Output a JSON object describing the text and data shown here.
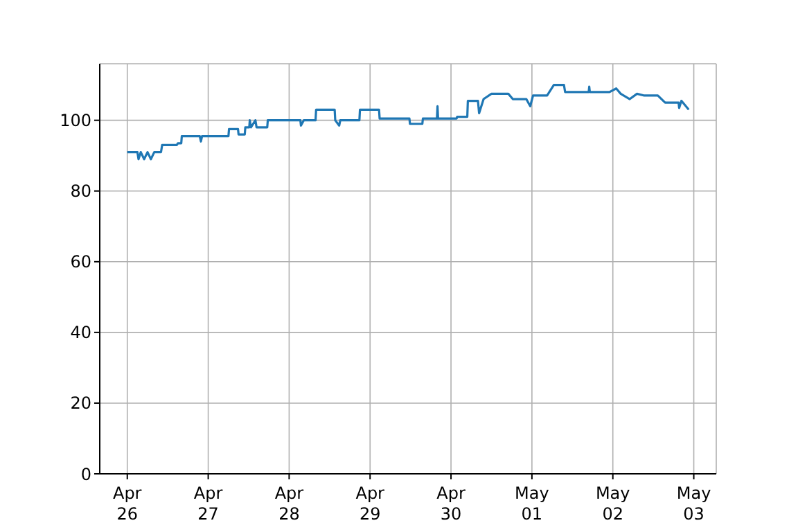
{
  "chart_data": {
    "type": "line",
    "x": [
      "--04-26T00:00",
      "--04-26T03:00",
      "--04-26T03:20",
      "--04-26T04:00",
      "--04-26T05:00",
      "--04-26T06:00",
      "--04-26T07:00",
      "--04-26T08:00",
      "--04-26T10:00",
      "--04-26T10:20",
      "--04-26T14:40",
      "--04-26T15:00",
      "--04-26T16:00",
      "--04-26T16:10",
      "--04-26T21:30",
      "--04-26T21:50",
      "--04-26T22:10",
      "--04-27T06:00",
      "--04-27T06:10",
      "--04-27T08:50",
      "--04-27T09:00",
      "--04-27T10:50",
      "--04-27T11:00",
      "--04-27T12:10",
      "--04-27T12:20",
      "--04-27T12:40",
      "--04-27T14:00",
      "--04-27T14:20",
      "--04-27T17:30",
      "--04-27T17:40",
      "--04-28T03:20",
      "--04-28T03:30",
      "--04-28T04:20",
      "--04-28T07:50",
      "--04-28T08:00",
      "--04-28T13:30",
      "--04-28T13:40",
      "--04-28T14:50",
      "--04-28T15:10",
      "--04-28T20:50",
      "--04-28T21:00",
      "--04-29T02:40",
      "--04-29T02:50",
      "--04-29T11:40",
      "--04-29T11:50",
      "--04-29T15:30",
      "--04-29T15:40",
      "--04-29T19:50",
      "--04-29T20:00",
      "--04-29T20:10",
      "--04-30T01:40",
      "--04-30T01:50",
      "--04-30T04:50",
      "--04-30T05:00",
      "--04-30T08:00",
      "--04-30T08:20",
      "--04-30T09:40",
      "--04-30T12:00",
      "--04-30T17:00",
      "--04-30T18:20",
      "--04-30T22:20",
      "--04-30T23:30",
      "--05-01T00:20",
      "--05-01T04:30",
      "--05-01T06:30",
      "--05-01T09:30",
      "--05-01T09:50",
      "--05-01T16:50",
      "--05-01T17:00",
      "--05-01T17:10",
      "--05-01T23:00",
      "--05-02T01:00",
      "--05-02T02:20",
      "--05-02T05:00",
      "--05-02T07:10",
      "--05-02T09:20",
      "--05-02T13:20",
      "--05-02T15:30",
      "--05-02T19:30",
      "--05-02T19:40",
      "--05-02T20:20",
      "--05-02T22:30"
    ],
    "series": [
      {
        "color": "#1f77b4",
        "values": [
          91,
          91,
          89,
          91,
          89,
          91,
          89,
          91,
          91,
          93,
          93,
          93.5,
          93.5,
          95.5,
          95.5,
          94,
          95.5,
          95.5,
          97.5,
          97.5,
          96,
          96,
          98,
          98,
          100,
          98,
          100,
          98,
          98,
          100,
          100,
          98.5,
          100,
          100,
          103,
          103,
          100,
          98.5,
          100,
          100,
          103,
          103,
          100.5,
          100.5,
          99,
          99,
          100.5,
          100.5,
          104,
          100.5,
          100.5,
          101,
          101,
          105.5,
          105.5,
          102,
          106,
          107.5,
          107.5,
          106,
          106,
          104,
          107,
          107,
          110,
          110,
          108,
          108,
          109.5,
          108,
          108,
          109,
          107.5,
          106,
          107.5,
          107,
          107,
          105,
          105,
          103.5,
          105.5,
          103
        ]
      }
    ],
    "xlim": [
      "--04-25T15:50",
      "--05-03T06:40"
    ],
    "xticks": [
      {
        "value": "--04-26",
        "label": "Apr\n26"
      },
      {
        "value": "--04-27",
        "label": "Apr\n27"
      },
      {
        "value": "--04-28",
        "label": "Apr\n28"
      },
      {
        "value": "--04-29",
        "label": "Apr\n29"
      },
      {
        "value": "--04-30",
        "label": "Apr\n30"
      },
      {
        "value": "--05-01",
        "label": "May\n01"
      },
      {
        "value": "--05-02",
        "label": "May\n02"
      },
      {
        "value": "--05-03",
        "label": "May\n03"
      }
    ],
    "ylim": [
      0,
      116
    ],
    "yticks": [
      0,
      20,
      40,
      60,
      80,
      100
    ],
    "grid": true,
    "legend": false,
    "marker": "none",
    "line_style": "solid"
  }
}
